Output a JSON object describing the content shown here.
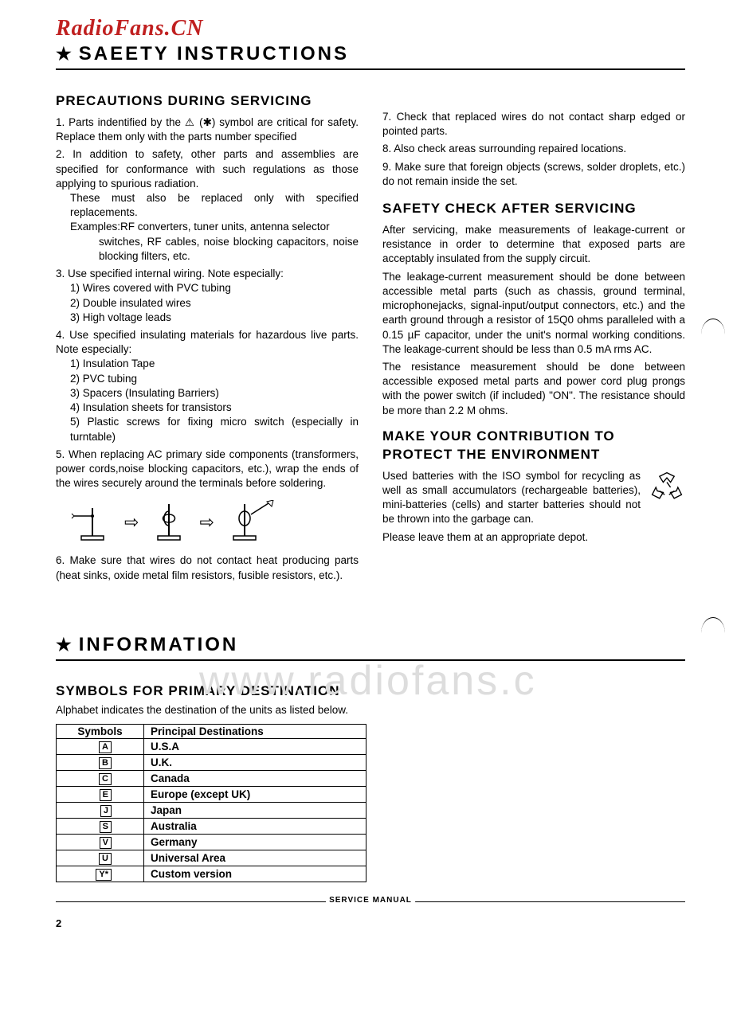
{
  "brand": "RadioFans.CN",
  "watermark": "www.radiofans.c",
  "section1_title": "SAEETY   INSTRUCTIONS",
  "precautions_head": "PRECAUTIONS  DURING  SERVICING",
  "left_items": {
    "i1": "1. Parts indentified by the  ⚠  (✱)  symbol are critical for safety. Replace them only with the parts number specified",
    "i2a": "2. In addition to safety, other parts and assemblies are specified for conformance with such regulations as those applying to spurious radiation.",
    "i2b": "These must also be replaced only with specified replacements.",
    "i2c": "Examples:RF converters, tuner units, antenna selector",
    "i2d": "switches, RF cables, noise blocking capacitors, noise blocking filters, etc.",
    "i3": "3. Use specified internal wiring. Note especially:",
    "i3_1": "1) Wires covered with PVC tubing",
    "i3_2": "2) Double insulated wires",
    "i3_3": "3) High voltage leads",
    "i4": "4. Use specified insulating materials for hazardous live parts. Note especially:",
    "i4_1": "1) Insulation Tape",
    "i4_2": "2) PVC tubing",
    "i4_3": "3) Spacers  (Insulating  Barriers)",
    "i4_4": "4) Insulation sheets for transistors",
    "i4_5": "5) Plastic screws for fixing micro switch (especially in turntable)",
    "i5": "5. When replacing AC primary side components (transformers, power cords,noise blocking capacitors, etc.), wrap the ends of the wires securely around the terminals before soldering.",
    "i6": "6. Make sure that wires do not contact heat producing parts (heat sinks, oxide metal film resistors, fusible resistors, etc.)."
  },
  "right_items": {
    "i7": "7. Check that replaced wires do not contact sharp edged or pointed parts.",
    "i8": "8. Also check areas surrounding repaired locations.",
    "i9": "9. Make sure that foreign objects (screws, solder droplets, etc.) do not remain inside the set."
  },
  "safety_head": "SAFETY  CHECK  AFTER  SERVICING",
  "safety_p1": "After servicing, make measurements of leakage-current or resistance in order to determine that exposed parts are acceptably insulated from the supply circuit.",
  "safety_p2": "The leakage-current measurement should be done between accessible metal parts (such as chassis, ground terminal, microphonejacks, signal-input/output connectors, etc.) and the earth ground through a resistor of 15Q0 ohms paralleled with a 0.15 µF capacitor, under the unit's normal working conditions. The leakage-current should be less than 0.5 mA rms AC.",
  "safety_p3": "The resistance measurement should be done between accessible exposed metal parts and power cord plug prongs with the power switch (if included) \"ON\". The resistance should be more than 2.2 M ohms.",
  "env_head": "MAKE  YOUR  CONTRIBUTION  TO  PROTECT THE ENVIRONMENT",
  "env_p1": "Used batteries with the ISO symbol for recycling as well as small accumulators (rechargeable batteries), mini-batteries (cells) and starter batteries should not be thrown into the garbage can.",
  "env_p2": "Please leave them at an appropriate depot.",
  "section2_title": "INFORMATION",
  "symbols_head": "SYMBOLS  FOR PRIMARY DESTINATION",
  "symbols_intro": "Alphabet indicates the destination of the units as listed below.",
  "table": {
    "h1": "Symbols",
    "h2": "Principal   Destinations",
    "rows": [
      {
        "sym": "A",
        "dest": "U.S.A"
      },
      {
        "sym": "B",
        "dest": "U.K."
      },
      {
        "sym": "C",
        "dest": "Canada"
      },
      {
        "sym": "E",
        "dest": "Europe  (except  UK)"
      },
      {
        "sym": "J",
        "dest": "Japan"
      },
      {
        "sym": "S",
        "dest": "Australia"
      },
      {
        "sym": "V",
        "dest": "Germany"
      },
      {
        "sym": "U",
        "dest": "Universal  Area"
      },
      {
        "sym": "Y*",
        "dest": "Custom   version"
      }
    ]
  },
  "footer_label": "SERVICE MANUAL",
  "page_num": "2"
}
